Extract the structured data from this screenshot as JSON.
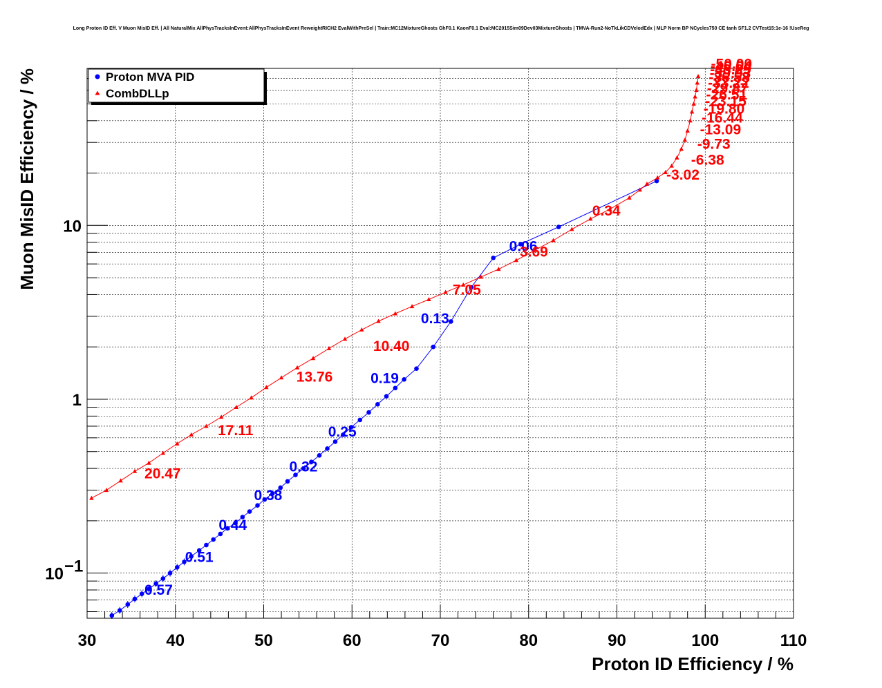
{
  "title": "Long Proton ID Eff. V Muon MisID Eff. | All NaturalMix AllPhysTracksInEvent:AllPhysTracksInEvent ReweightRICH2 EvalWithPreSel | Train:MC12MixtureGhosts GhF0.1 KaonF0.1 Eval:MC2015Sim09Dev03MixtureGhosts | TMVA-Run2-NoTkLikCDVelodEdx | MLP Norm BP NCycles750 CE tanh SF1.2 CVTest15:1e-16 !UseReg",
  "chart_data": {
    "type": "line",
    "xlabel": "Proton ID Efficiency / %",
    "ylabel": "Muon MisID Efficiency / %",
    "xlim": [
      30,
      110
    ],
    "ylim": [
      0.055,
      80
    ],
    "yscale": "log",
    "grid": true,
    "legend_position": "top-left",
    "x_ticks": [
      "30",
      "40",
      "50",
      "60",
      "70",
      "80",
      "90",
      "100",
      "110"
    ],
    "y_ticks": [
      {
        "value": 10,
        "label": "10"
      },
      {
        "value": 1,
        "label": "1"
      },
      {
        "value": 0.1,
        "base": "10",
        "exp": "−1"
      }
    ],
    "series": [
      {
        "name": "Proton MVA PID",
        "color": "#0000ff",
        "marker": "circle",
        "x": [
          32.8,
          33.7,
          34.6,
          35.4,
          36.2,
          37.0,
          37.8,
          38.6,
          39.4,
          40.2,
          41.0,
          41.8,
          42.7,
          43.5,
          44.3,
          45.1,
          45.9,
          46.8,
          47.6,
          48.4,
          49.3,
          50.1,
          51.0,
          51.9,
          52.7,
          53.6,
          54.5,
          55.4,
          56.3,
          57.2,
          58.1,
          59.0,
          59.9,
          60.9,
          61.9,
          62.9,
          63.9,
          64.9,
          65.9,
          67.3,
          69.2,
          71.2,
          73.5,
          76.0,
          79.1,
          83.4,
          94.5
        ],
        "y": [
          0.057,
          0.061,
          0.066,
          0.071,
          0.076,
          0.081,
          0.087,
          0.093,
          0.1,
          0.108,
          0.116,
          0.125,
          0.135,
          0.145,
          0.156,
          0.168,
          0.181,
          0.194,
          0.21,
          0.226,
          0.245,
          0.265,
          0.287,
          0.31,
          0.337,
          0.367,
          0.4,
          0.436,
          0.475,
          0.52,
          0.57,
          0.625,
          0.69,
          0.76,
          0.84,
          0.935,
          1.04,
          1.16,
          1.3,
          1.5,
          2.0,
          2.8,
          4.4,
          6.5,
          7.8,
          9.8,
          18.0
        ],
        "annotations": [
          {
            "x": 36.5,
            "y": 0.075,
            "text": "0.57"
          },
          {
            "x": 41.1,
            "y": 0.116,
            "text": "0.51"
          },
          {
            "x": 44.9,
            "y": 0.177,
            "text": "0.44"
          },
          {
            "x": 48.9,
            "y": 0.263,
            "text": "0.38"
          },
          {
            "x": 52.9,
            "y": 0.385,
            "text": "0.32"
          },
          {
            "x": 57.3,
            "y": 0.61,
            "text": "0.25"
          },
          {
            "x": 62.1,
            "y": 1.24,
            "text": "0.19"
          },
          {
            "x": 67.8,
            "y": 2.74,
            "text": "0.13"
          },
          {
            "x": 77.8,
            "y": 7.1,
            "text": "0.06"
          }
        ]
      },
      {
        "name": "CombDLLp",
        "color": "#ff0000",
        "marker": "triangle",
        "x": [
          30.5,
          32.2,
          33.8,
          35.4,
          37.0,
          38.6,
          40.2,
          41.8,
          43.5,
          45.2,
          46.9,
          48.6,
          50.3,
          52.0,
          53.8,
          55.6,
          57.4,
          59.2,
          61.1,
          63.0,
          64.9,
          66.8,
          68.7,
          70.6,
          72.6,
          74.6,
          76.6,
          78.6,
          80.7,
          82.8,
          84.9,
          87.0,
          89.2,
          91.4,
          92.6,
          93.4,
          94.6,
          95.5,
          96.2,
          96.8,
          97.3,
          97.7,
          98.0,
          98.3,
          98.5,
          98.7,
          98.85,
          99.0,
          99.1,
          99.2
        ],
        "y": [
          0.27,
          0.3,
          0.34,
          0.385,
          0.43,
          0.49,
          0.555,
          0.625,
          0.7,
          0.79,
          0.9,
          1.02,
          1.17,
          1.33,
          1.52,
          1.72,
          1.96,
          2.22,
          2.51,
          2.81,
          3.11,
          3.42,
          3.75,
          4.13,
          4.55,
          5.05,
          5.6,
          6.3,
          7.2,
          8.2,
          9.5,
          10.9,
          12.4,
          14.4,
          16.0,
          17.3,
          18.8,
          20.2,
          22.0,
          24.5,
          27.5,
          31.0,
          35.0,
          40.0,
          45.0,
          50.0,
          55.0,
          60.0,
          66.0,
          72.0
        ],
        "annotations": [
          {
            "x": 36.5,
            "y": 0.35,
            "text": "20.47"
          },
          {
            "x": 44.8,
            "y": 0.62,
            "text": "17.11"
          },
          {
            "x": 53.7,
            "y": 1.26,
            "text": "13.76"
          },
          {
            "x": 62.4,
            "y": 1.9,
            "text": "10.40"
          },
          {
            "x": 71.4,
            "y": 4.0,
            "text": "7.05"
          },
          {
            "x": 79.0,
            "y": 6.6,
            "text": "3.69"
          },
          {
            "x": 87.2,
            "y": 11.4,
            "text": "0.34"
          },
          {
            "x": 95.6,
            "y": 18.3,
            "text": "-3.02"
          },
          {
            "x": 98.4,
            "y": 22.3,
            "text": "-6.38"
          },
          {
            "x": 99.1,
            "y": 27.5,
            "text": "-9.73"
          },
          {
            "x": 99.4,
            "y": 33.4,
            "text": "-13.09"
          },
          {
            "x": 99.6,
            "y": 39.0,
            "text": "-16.44"
          },
          {
            "x": 99.8,
            "y": 44.0,
            "text": "-19.80"
          },
          {
            "x": 100.0,
            "y": 48.5,
            "text": "-23.15"
          },
          {
            "x": 100.1,
            "y": 53.0,
            "text": "-26.51"
          },
          {
            "x": 100.2,
            "y": 57.5,
            "text": "-29.87"
          },
          {
            "x": 100.3,
            "y": 62.0,
            "text": "-33.22"
          },
          {
            "x": 100.4,
            "y": 66.5,
            "text": "-36.58"
          },
          {
            "x": 100.5,
            "y": 70.5,
            "text": "-39.93"
          },
          {
            "x": 100.55,
            "y": 74.0,
            "text": "-43.29"
          },
          {
            "x": 100.6,
            "y": 77.0,
            "text": "-46.64"
          },
          {
            "x": 100.65,
            "y": 79.5,
            "text": "-50.00"
          }
        ]
      }
    ]
  }
}
